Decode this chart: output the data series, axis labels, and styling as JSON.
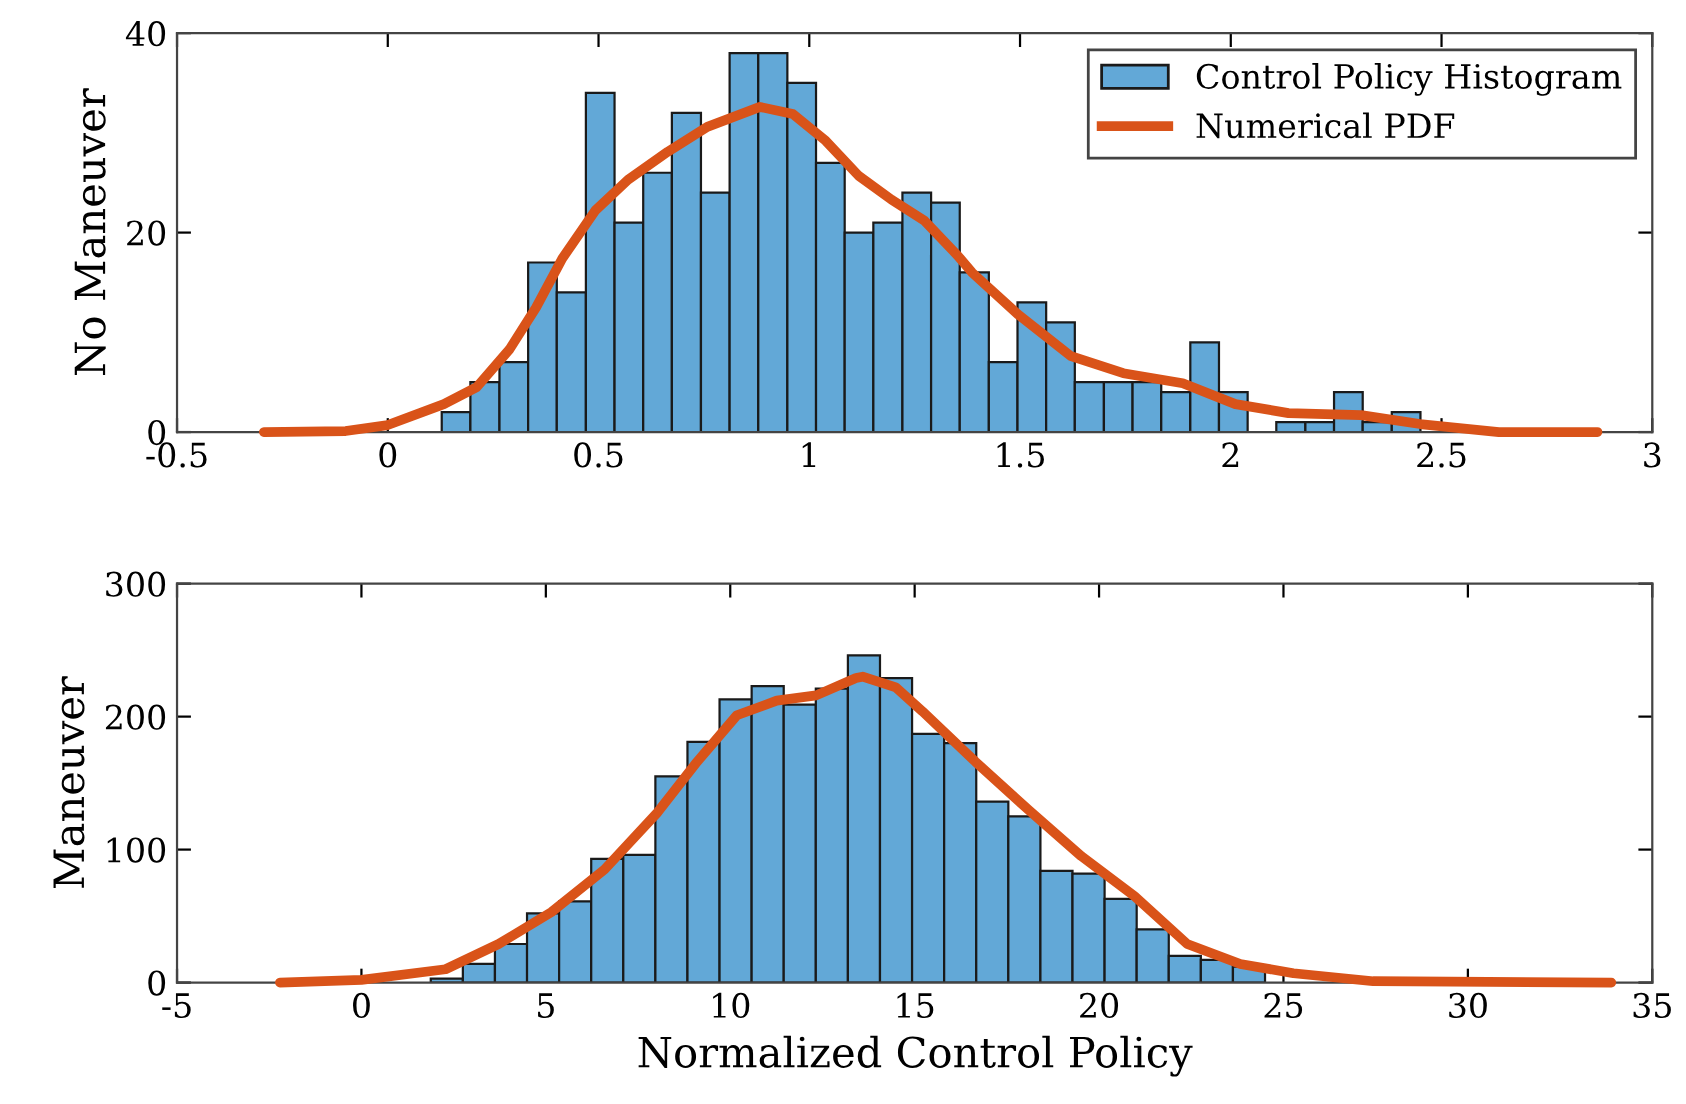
{
  "chart_data": [
    {
      "type": "histogram",
      "ylabel": "No Maneuver",
      "xlim": [
        -0.5,
        3
      ],
      "xticks": [
        {
          "value": -0.5,
          "label": "-0.5"
        },
        0,
        0.5,
        1,
        1.5,
        2,
        2.5,
        3
      ],
      "ylim": [
        0,
        40
      ],
      "yticks": [
        0,
        20,
        40
      ],
      "legend": "top right",
      "grid": false,
      "series": [
        {
          "name": "Control Policy Histogram",
          "color": "#62a8d7",
          "bins": [
            0.128,
            0.196,
            0.265,
            0.333,
            0.401,
            0.47,
            0.538,
            0.606,
            0.674,
            0.743,
            0.811,
            0.879,
            0.948,
            1.016,
            1.084,
            1.152,
            1.221,
            1.289,
            1.357,
            1.426,
            1.494,
            1.562,
            1.63,
            1.699,
            1.767,
            1.835,
            1.904,
            1.972,
            2.04,
            2.108,
            2.177,
            2.245,
            2.313,
            2.382,
            2.45
          ],
          "values": [
            2,
            5,
            7,
            17,
            14,
            34,
            21,
            26,
            32,
            24,
            38,
            38,
            35,
            27,
            20,
            21,
            24,
            23,
            16,
            7,
            13,
            11,
            5,
            5,
            5,
            4,
            9,
            4,
            0,
            1,
            1,
            4,
            1,
            2
          ]
        },
        {
          "type": "line",
          "name": "Numerical PDF",
          "color": "#d95319",
          "x": [
            -0.294,
            -0.1,
            0,
            0.133,
            0.211,
            0.289,
            0.352,
            0.414,
            0.492,
            0.57,
            0.664,
            0.758,
            0.883,
            0.961,
            1.039,
            1.117,
            1.195,
            1.273,
            1.352,
            1.386,
            1.495,
            1.621,
            1.745,
            1.886,
            2.011,
            2.137,
            2.309,
            2.449,
            2.636,
            2.87
          ],
          "values": [
            0,
            0.1,
            0.7,
            2.8,
            4.5,
            8.3,
            12.5,
            17.4,
            22.2,
            25.3,
            28.1,
            30.6,
            32.6,
            31.9,
            29.2,
            25.7,
            23.3,
            21.2,
            17.7,
            16,
            11.8,
            7.6,
            5.9,
            4.9,
            2.8,
            1.9,
            1.7,
            0.8,
            0,
            0
          ]
        }
      ]
    },
    {
      "type": "histogram",
      "ylabel": "Maneuver",
      "xlabel": "Normalized Control Policy",
      "xlim": [
        -5,
        35
      ],
      "xticks": [
        {
          "value": -5,
          "label": "-5"
        },
        0,
        5,
        10,
        15,
        20,
        25,
        30,
        35
      ],
      "ylim": [
        0,
        300
      ],
      "yticks": [
        0,
        100,
        200,
        300
      ],
      "legend": false,
      "grid": false,
      "series": [
        {
          "color": "#62a8d7",
          "bins": [
            1.88,
            2.75,
            3.62,
            4.49,
            5.36,
            6.23,
            7.1,
            7.97,
            8.84,
            9.71,
            10.58,
            11.45,
            12.32,
            13.19,
            14.06,
            14.93,
            15.8,
            16.67,
            17.54,
            18.41,
            19.28,
            20.15,
            21.02,
            21.89,
            22.76,
            23.63,
            24.5
          ],
          "values": [
            3,
            14,
            29,
            52,
            61,
            93,
            96,
            155,
            181,
            213,
            223,
            209,
            221,
            246,
            229,
            187,
            180,
            136,
            125,
            84,
            82,
            63,
            40,
            20,
            17,
            12
          ]
        },
        {
          "type": "line",
          "color": "#d95319",
          "x": [
            -2.21,
            0,
            2.28,
            3.72,
            5.15,
            6.59,
            8.03,
            9.1,
            10.18,
            11.26,
            12.33,
            13.41,
            13.59,
            14.49,
            15.21,
            16.65,
            18.08,
            19.52,
            20.96,
            22.39,
            23.83,
            25.27,
            27.43,
            33.89
          ],
          "values": [
            0,
            2,
            10,
            29,
            53,
            85,
            128,
            166,
            201,
            212,
            216,
            229,
            230,
            222,
            204,
            166,
            130,
            95,
            65,
            29,
            14,
            7,
            1,
            0
          ]
        }
      ]
    }
  ]
}
